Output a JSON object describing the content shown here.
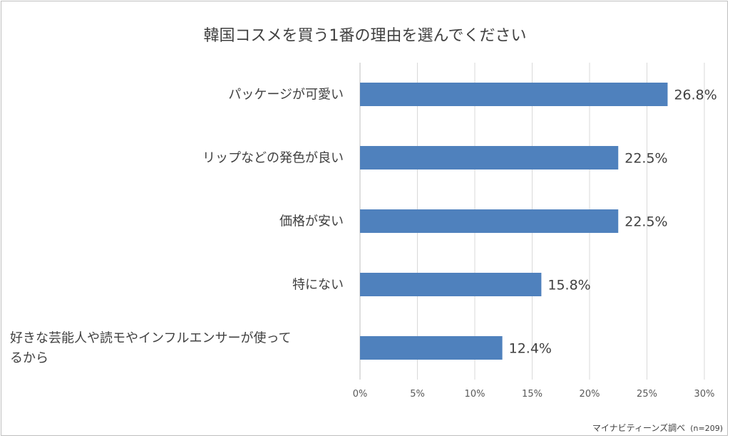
{
  "chart_data": {
    "type": "bar",
    "orientation": "horizontal",
    "title": "韓国コスメを買う1番の理由を選んでください",
    "categories": [
      "パッケージが可愛い",
      "リップなどの発色が良い",
      "価格が安い",
      "特にない",
      "好きな芸能人や読モやインフルエンサーが使ってるから"
    ],
    "category_label_lines": [
      [
        "パッケージが可愛い"
      ],
      [
        "リップなどの発色が良い"
      ],
      [
        "価格が安い"
      ],
      [
        "特にない"
      ],
      [
        "好きな芸能人や読モやインフルエンサーが使って",
        "るから"
      ]
    ],
    "values": [
      26.8,
      22.5,
      22.5,
      15.8,
      12.4
    ],
    "data_labels": [
      "26.8%",
      "22.5%",
      "22.5%",
      "15.8%",
      "12.4%"
    ],
    "x_ticks": [
      0,
      5,
      10,
      15,
      20,
      25,
      30
    ],
    "x_tick_labels": [
      "0%",
      "5%",
      "10%",
      "15%",
      "20%",
      "25%",
      "30%"
    ],
    "xlim": [
      0,
      30
    ],
    "grid": true,
    "bar_color": "#4f81bd",
    "source_text": "マイナビティーンズ調べ",
    "sample_text": "(n=209)"
  }
}
